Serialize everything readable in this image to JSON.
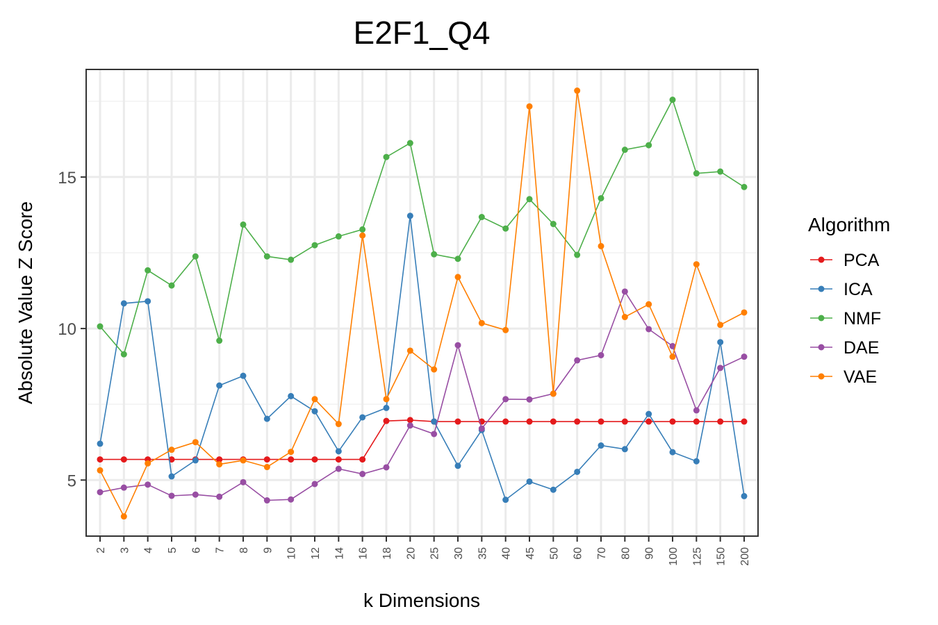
{
  "chart_data": {
    "type": "line",
    "title": "E2F1_Q4",
    "xlabel": "k Dimensions",
    "ylabel": "Absolute Value Z Score",
    "categories": [
      "2",
      "3",
      "4",
      "5",
      "6",
      "7",
      "8",
      "9",
      "10",
      "12",
      "14",
      "16",
      "18",
      "20",
      "25",
      "30",
      "35",
      "40",
      "45",
      "50",
      "60",
      "70",
      "80",
      "90",
      "100",
      "125",
      "150",
      "200"
    ],
    "ylim": [
      3.15,
      18.55
    ],
    "yticks": [
      5,
      10,
      15
    ],
    "grid": true,
    "legend_title": "Algorithm",
    "legend_position": "right",
    "series": [
      {
        "name": "PCA",
        "color": "#e41a1c",
        "values": [
          5.68,
          5.68,
          5.68,
          5.68,
          5.68,
          5.68,
          5.68,
          5.68,
          5.68,
          5.68,
          5.68,
          5.68,
          6.95,
          6.98,
          6.93,
          6.93,
          6.93,
          6.93,
          6.93,
          6.93,
          6.93,
          6.93,
          6.93,
          6.93,
          6.93,
          6.93,
          6.93,
          6.93
        ]
      },
      {
        "name": "ICA",
        "color": "#377eb8",
        "values": [
          6.2,
          10.83,
          10.9,
          5.12,
          5.65,
          8.12,
          8.44,
          7.02,
          7.77,
          7.27,
          5.95,
          7.07,
          7.38,
          13.72,
          6.93,
          5.47,
          6.65,
          4.35,
          4.95,
          4.68,
          5.27,
          6.14,
          6.02,
          7.18,
          5.92,
          5.62,
          9.55,
          4.47
        ]
      },
      {
        "name": "NMF",
        "color": "#4daf4a",
        "values": [
          10.07,
          9.15,
          11.92,
          11.42,
          12.38,
          9.6,
          13.43,
          12.38,
          12.27,
          12.75,
          13.04,
          13.27,
          15.66,
          16.12,
          12.45,
          12.3,
          13.68,
          13.3,
          14.27,
          13.45,
          12.43,
          14.3,
          15.9,
          16.05,
          17.55,
          15.12,
          15.18,
          14.67
        ]
      },
      {
        "name": "DAE",
        "color": "#984ea3",
        "values": [
          4.6,
          4.75,
          4.85,
          4.48,
          4.52,
          4.45,
          4.93,
          4.33,
          4.36,
          4.87,
          5.37,
          5.2,
          5.42,
          6.8,
          6.52,
          9.45,
          6.7,
          7.67,
          7.66,
          7.85,
          8.95,
          9.12,
          11.22,
          9.98,
          9.42,
          7.3,
          8.7,
          9.07
        ]
      },
      {
        "name": "VAE",
        "color": "#ff7f00",
        "values": [
          5.32,
          3.8,
          5.55,
          6.0,
          6.25,
          5.52,
          5.65,
          5.43,
          5.93,
          7.67,
          6.85,
          13.07,
          7.67,
          9.27,
          8.65,
          11.7,
          10.18,
          9.95,
          17.33,
          7.85,
          17.85,
          12.72,
          10.38,
          10.8,
          9.07,
          12.12,
          10.12,
          10.53
        ]
      }
    ]
  }
}
